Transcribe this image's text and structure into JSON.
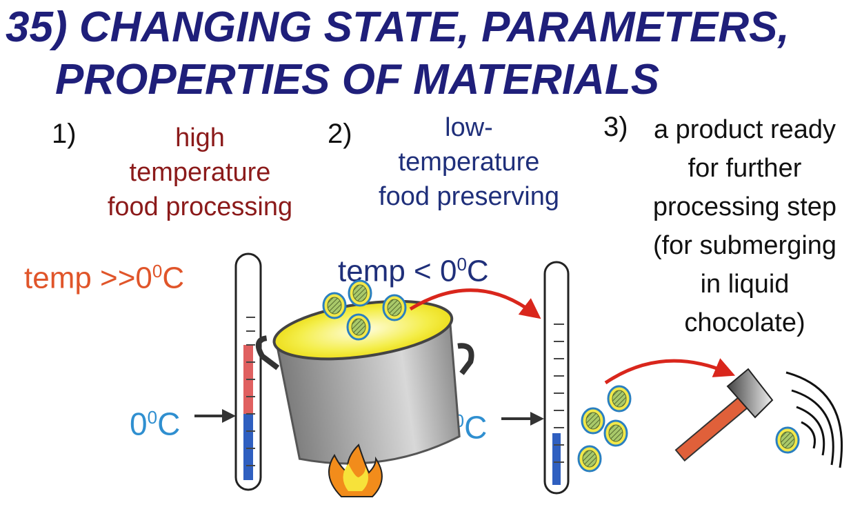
{
  "title": {
    "line1": "35) CHANGING STATE, PARAMETERS,",
    "line2": "PROPERTIES OF MATERIALS"
  },
  "steps": [
    {
      "number": "1)",
      "lines": [
        "high",
        "temperature",
        "food processing"
      ],
      "color": "#8b1a1a"
    },
    {
      "number": "2)",
      "lines": [
        "low-",
        "temperature",
        "food preserving"
      ],
      "color": "#1f2f7a"
    },
    {
      "number": "3)",
      "lines": [
        "a product ready",
        "for further",
        "processing step",
        "(for submerging",
        "in liquid",
        "chocolate)"
      ],
      "color": "#111111"
    }
  ],
  "temps": {
    "high": {
      "base": "temp >>0",
      "sup": "0",
      "unit": "C",
      "color": "#e0552a"
    },
    "low": {
      "base": "temp < 0",
      "sup": "0",
      "unit": "C",
      "color": "#1f2f7a"
    },
    "zero_left": {
      "base": "0",
      "sup": "0",
      "unit": "C",
      "color": "#2f8fd0"
    },
    "zero_right": {
      "base": "0",
      "sup": "0",
      "unit": "C",
      "color": "#2f8fd0"
    }
  },
  "icons": [
    "thermometer-icon",
    "pot-icon",
    "flame-icon",
    "pea-icon",
    "hammer-icon",
    "sound-wave-icon",
    "curved-arrow-icon"
  ]
}
